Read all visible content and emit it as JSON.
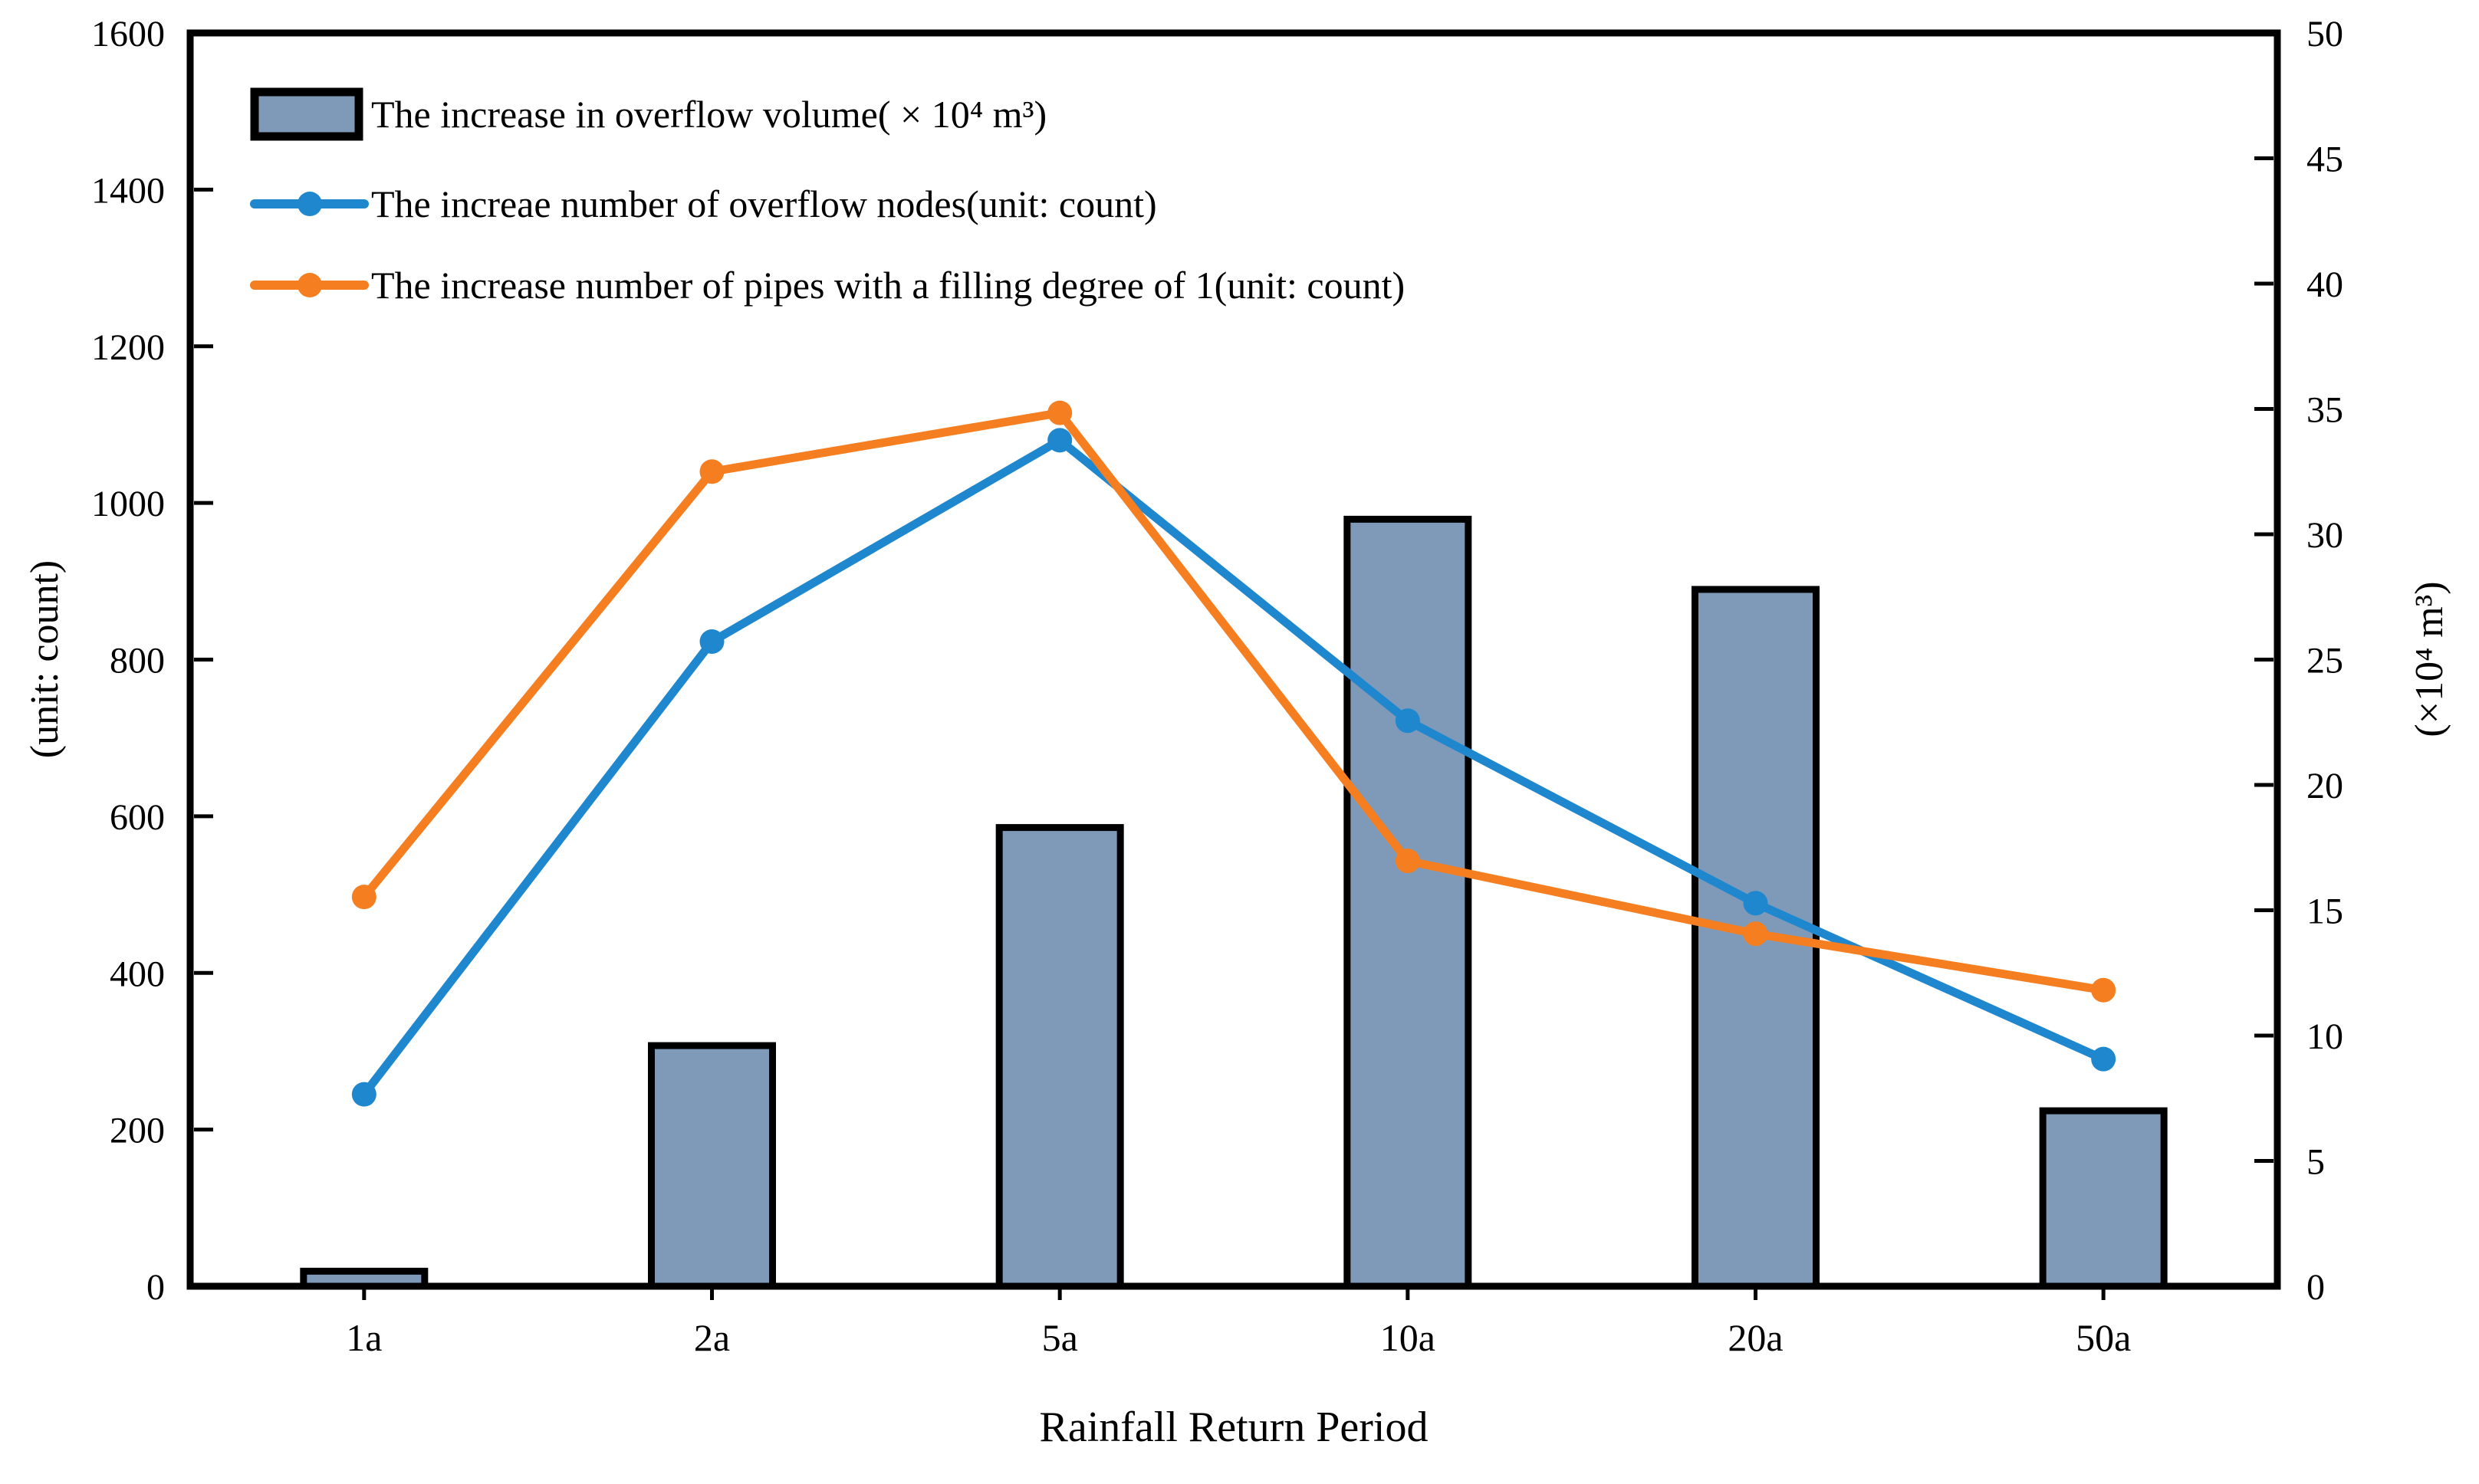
{
  "page": {
    "background": "#ffffff"
  },
  "chart_data": {
    "type": "bar+line",
    "dual_axis": true,
    "categories": [
      "1a",
      "2a",
      "5a",
      "10a",
      "20a",
      "50a"
    ],
    "series": [
      {
        "name": "The increase in overflow volume( × 10⁴ m³)",
        "type": "bar",
        "axis": "right",
        "color": "#7e9ab8",
        "border_color": "#000000",
        "values": [
          0.6,
          9.6,
          18.3,
          30.6,
          27.8,
          7.0
        ]
      },
      {
        "name": "The increae number of overflow nodes(unit: count)",
        "type": "line",
        "axis": "left",
        "color": "#1e87ce",
        "marker": "circle",
        "values": [
          245,
          823,
          1080,
          722,
          489,
          290
        ]
      },
      {
        "name": "The increase  number of pipes with a filling degree of 1(unit: count)",
        "type": "line",
        "axis": "left",
        "color": "#f57e21",
        "marker": "circle",
        "values": [
          497,
          1040,
          1115,
          543,
          450,
          378
        ]
      }
    ],
    "xlabel": "Rainfall Return Period",
    "left_axis": {
      "label": "(unit: count)",
      "min": 0,
      "max": 1600,
      "step": 200,
      "ticks": [
        "0",
        "200",
        "400",
        "600",
        "800",
        "1000",
        "1200",
        "1400",
        "1600"
      ]
    },
    "right_axis": {
      "label": "(×10⁴ m³)",
      "min": 0,
      "max": 50,
      "step": 5,
      "ticks": [
        "0",
        "5",
        "10",
        "15",
        "20",
        "25",
        "30",
        "35",
        "40",
        "45",
        "50"
      ]
    },
    "legend": {
      "position": "top-left-inside"
    },
    "grid": false,
    "frame_color": "#000000"
  }
}
